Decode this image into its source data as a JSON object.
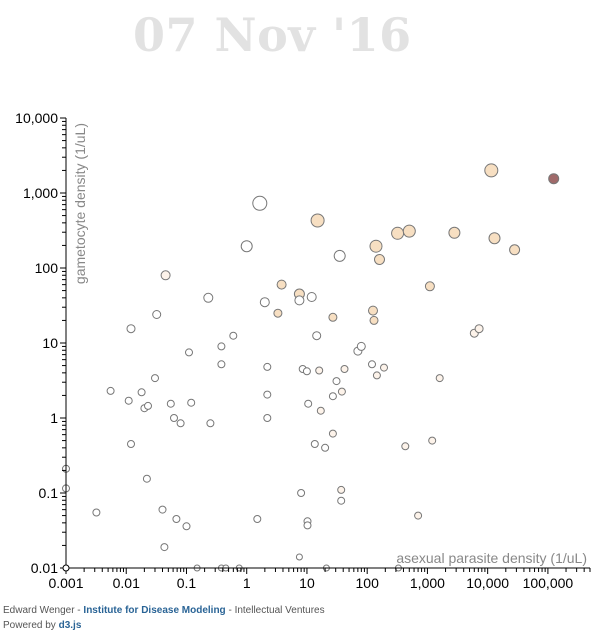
{
  "title": "07 Nov '16",
  "footer": {
    "author": "Edward Wenger",
    "sep1": " - ",
    "institute": "Institute for Disease Modeling",
    "sep2": " - ",
    "company": "Intellectual Ventures",
    "powered_prefix": "Powered by ",
    "library": "d3.js"
  },
  "chart_data": {
    "type": "scatter",
    "title": "07 Nov '16",
    "xlabel": "asexual parasite density (1/uL)",
    "ylabel": "gametocyte density (1/uL)",
    "x_scale": "log",
    "y_scale": "log",
    "xlim": [
      0.001,
      500000
    ],
    "ylim": [
      0.01,
      10000
    ],
    "x_ticks": [
      "0.001",
      "0.01",
      "0.1",
      "1",
      "10",
      "100",
      "1,000",
      "10,000",
      "100,000"
    ],
    "y_ticks": [
      "0.01",
      "0.1",
      "1",
      "10",
      "100",
      "1,000",
      "10,000"
    ],
    "grid": false,
    "colors": {
      "outline": "#777777",
      "highlight_fill": "#a06a6a",
      "warm_fill": "#f7dfc2",
      "light_fill": "#fdf3ea"
    },
    "points": [
      {
        "x": 0.001,
        "y": 0.21,
        "r": 3.5,
        "fill": "#ffffff"
      },
      {
        "x": 0.001,
        "y": 0.115,
        "r": 3.5,
        "fill": "#ffffff"
      },
      {
        "x": 0.0032,
        "y": 0.055,
        "r": 3.5,
        "fill": "#ffffff"
      },
      {
        "x": 0.0055,
        "y": 2.3,
        "r": 3.5,
        "fill": "#ffffff"
      },
      {
        "x": 0.011,
        "y": 1.7,
        "r": 3.5,
        "fill": "#ffffff"
      },
      {
        "x": 0.012,
        "y": 0.45,
        "r": 3.5,
        "fill": "#ffffff"
      },
      {
        "x": 0.012,
        "y": 15.5,
        "r": 4,
        "fill": "#ffffff"
      },
      {
        "x": 0.018,
        "y": 2.2,
        "r": 3.5,
        "fill": "#ffffff"
      },
      {
        "x": 0.02,
        "y": 1.35,
        "r": 3.5,
        "fill": "#ffffff"
      },
      {
        "x": 0.023,
        "y": 1.45,
        "r": 3.5,
        "fill": "#ffffff"
      },
      {
        "x": 0.022,
        "y": 0.155,
        "r": 3.5,
        "fill": "#ffffff"
      },
      {
        "x": 0.03,
        "y": 3.4,
        "r": 3.5,
        "fill": "#ffffff"
      },
      {
        "x": 0.032,
        "y": 24,
        "r": 4,
        "fill": "#ffffff"
      },
      {
        "x": 0.04,
        "y": 0.06,
        "r": 3.5,
        "fill": "#ffffff"
      },
      {
        "x": 0.043,
        "y": 0.019,
        "r": 3.5,
        "fill": "#ffffff"
      },
      {
        "x": 0.045,
        "y": 80,
        "r": 4.5,
        "fill": "#fdf3ea"
      },
      {
        "x": 0.055,
        "y": 1.55,
        "r": 3.5,
        "fill": "#ffffff"
      },
      {
        "x": 0.062,
        "y": 1.0,
        "r": 3.5,
        "fill": "#ffffff"
      },
      {
        "x": 0.068,
        "y": 0.045,
        "r": 3.5,
        "fill": "#ffffff"
      },
      {
        "x": 0.08,
        "y": 0.85,
        "r": 3.5,
        "fill": "#ffffff"
      },
      {
        "x": 0.1,
        "y": 0.036,
        "r": 3.5,
        "fill": "#ffffff"
      },
      {
        "x": 0.11,
        "y": 7.5,
        "r": 3.5,
        "fill": "#ffffff"
      },
      {
        "x": 0.12,
        "y": 1.6,
        "r": 3.5,
        "fill": "#ffffff"
      },
      {
        "x": 0.15,
        "y": 0.01,
        "r": 3,
        "fill": "#ffffff"
      },
      {
        "x": 0.23,
        "y": 40,
        "r": 4.5,
        "fill": "#ffffff"
      },
      {
        "x": 0.25,
        "y": 0.85,
        "r": 3.5,
        "fill": "#ffffff"
      },
      {
        "x": 0.38,
        "y": 9,
        "r": 3.5,
        "fill": "#ffffff"
      },
      {
        "x": 0.38,
        "y": 5.2,
        "r": 3.5,
        "fill": "#ffffff"
      },
      {
        "x": 0.38,
        "y": 0.01,
        "r": 3,
        "fill": "#ffffff"
      },
      {
        "x": 0.45,
        "y": 0.01,
        "r": 3,
        "fill": "#ffffff"
      },
      {
        "x": 0.6,
        "y": 12.5,
        "r": 3.5,
        "fill": "#ffffff"
      },
      {
        "x": 0.75,
        "y": 0.01,
        "r": 3,
        "fill": "#ffffff"
      },
      {
        "x": 1.0,
        "y": 195,
        "r": 5.5,
        "fill": "#ffffff"
      },
      {
        "x": 1.5,
        "y": 0.045,
        "r": 3.5,
        "fill": "#ffffff"
      },
      {
        "x": 1.65,
        "y": 730,
        "r": 7,
        "fill": "#ffffff"
      },
      {
        "x": 2.0,
        "y": 35,
        "r": 4.5,
        "fill": "#ffffff"
      },
      {
        "x": 2.2,
        "y": 4.8,
        "r": 3.5,
        "fill": "#ffffff"
      },
      {
        "x": 2.2,
        "y": 2.05,
        "r": 3.5,
        "fill": "#ffffff"
      },
      {
        "x": 2.2,
        "y": 1.0,
        "r": 3.5,
        "fill": "#ffffff"
      },
      {
        "x": 3.3,
        "y": 25,
        "r": 4,
        "fill": "#f7dfc2"
      },
      {
        "x": 3.8,
        "y": 60,
        "r": 4.5,
        "fill": "#f7dfc2"
      },
      {
        "x": 7.5,
        "y": 45,
        "r": 5,
        "fill": "#f7dfc2"
      },
      {
        "x": 7.5,
        "y": 37,
        "r": 4.5,
        "fill": "#ffffff"
      },
      {
        "x": 7.5,
        "y": 0.014,
        "r": 3,
        "fill": "#ffffff"
      },
      {
        "x": 8.0,
        "y": 0.1,
        "r": 3.5,
        "fill": "#ffffff"
      },
      {
        "x": 8.5,
        "y": 4.5,
        "r": 3.5,
        "fill": "#ffffff"
      },
      {
        "x": 10.0,
        "y": 4.2,
        "r": 3.5,
        "fill": "#ffffff"
      },
      {
        "x": 10.2,
        "y": 0.042,
        "r": 3.5,
        "fill": "#ffffff"
      },
      {
        "x": 10.2,
        "y": 0.037,
        "r": 3.5,
        "fill": "#ffffff"
      },
      {
        "x": 10.5,
        "y": 1.55,
        "r": 3.5,
        "fill": "#ffffff"
      },
      {
        "x": 12.0,
        "y": 41,
        "r": 4.5,
        "fill": "#ffffff"
      },
      {
        "x": 13.5,
        "y": 0.45,
        "r": 3.5,
        "fill": "#ffffff"
      },
      {
        "x": 14.5,
        "y": 12.5,
        "r": 4,
        "fill": "#ffffff"
      },
      {
        "x": 15.0,
        "y": 430,
        "r": 6.5,
        "fill": "#f7dfc2"
      },
      {
        "x": 16.0,
        "y": 4.3,
        "r": 3.5,
        "fill": "#fdf3ea"
      },
      {
        "x": 17.0,
        "y": 1.25,
        "r": 3.5,
        "fill": "#fdf3ea"
      },
      {
        "x": 20.0,
        "y": 0.4,
        "r": 3.5,
        "fill": "#ffffff"
      },
      {
        "x": 21.0,
        "y": 0.01,
        "r": 3,
        "fill": "#ffffff"
      },
      {
        "x": 27.0,
        "y": 22,
        "r": 4,
        "fill": "#f7dfc2"
      },
      {
        "x": 27.0,
        "y": 1.95,
        "r": 3.5,
        "fill": "#ffffff"
      },
      {
        "x": 27.0,
        "y": 0.62,
        "r": 3.5,
        "fill": "#fdf3ea"
      },
      {
        "x": 31.0,
        "y": 3.1,
        "r": 3.5,
        "fill": "#ffffff"
      },
      {
        "x": 35.0,
        "y": 145,
        "r": 5.5,
        "fill": "#ffffff"
      },
      {
        "x": 37.0,
        "y": 0.11,
        "r": 3.5,
        "fill": "#fdf3ea"
      },
      {
        "x": 37.0,
        "y": 0.079,
        "r": 3.5,
        "fill": "#ffffff"
      },
      {
        "x": 38.0,
        "y": 2.25,
        "r": 3.5,
        "fill": "#fdf3ea"
      },
      {
        "x": 42.0,
        "y": 4.5,
        "r": 3.5,
        "fill": "#fdf3ea"
      },
      {
        "x": 70.0,
        "y": 7.8,
        "r": 4,
        "fill": "#ffffff"
      },
      {
        "x": 80.0,
        "y": 9.0,
        "r": 4,
        "fill": "#ffffff"
      },
      {
        "x": 120.0,
        "y": 5.2,
        "r": 3.5,
        "fill": "#ffffff"
      },
      {
        "x": 125.0,
        "y": 27,
        "r": 4.5,
        "fill": "#f7dfc2"
      },
      {
        "x": 130.0,
        "y": 20,
        "r": 4,
        "fill": "#f7dfc2"
      },
      {
        "x": 140.0,
        "y": 195,
        "r": 6,
        "fill": "#f7dfc2"
      },
      {
        "x": 145.0,
        "y": 3.7,
        "r": 3.5,
        "fill": "#fdf3ea"
      },
      {
        "x": 160.0,
        "y": 130,
        "r": 5,
        "fill": "#f7dfc2"
      },
      {
        "x": 190.0,
        "y": 4.7,
        "r": 3.5,
        "fill": "#fdf3ea"
      },
      {
        "x": 320.0,
        "y": 290,
        "r": 6,
        "fill": "#f7dfc2"
      },
      {
        "x": 330.0,
        "y": 0.01,
        "r": 3,
        "fill": "#ffffff"
      },
      {
        "x": 430.0,
        "y": 0.42,
        "r": 3.5,
        "fill": "#fdf3ea"
      },
      {
        "x": 500.0,
        "y": 310,
        "r": 6,
        "fill": "#f7dfc2"
      },
      {
        "x": 700.0,
        "y": 0.05,
        "r": 3.5,
        "fill": "#fdf3ea"
      },
      {
        "x": 1100.0,
        "y": 57,
        "r": 4.5,
        "fill": "#f7dfc2"
      },
      {
        "x": 1200.0,
        "y": 0.5,
        "r": 3.5,
        "fill": "#fdf3ea"
      },
      {
        "x": 1600.0,
        "y": 3.4,
        "r": 3.5,
        "fill": "#fdf3ea"
      },
      {
        "x": 2800.0,
        "y": 295,
        "r": 5.5,
        "fill": "#f7dfc2"
      },
      {
        "x": 6000.0,
        "y": 13.5,
        "r": 4,
        "fill": "#fdf3ea"
      },
      {
        "x": 7200.0,
        "y": 15.5,
        "r": 4,
        "fill": "#fdf3ea"
      },
      {
        "x": 11500.0,
        "y": 2000,
        "r": 6.5,
        "fill": "#f7dfc2"
      },
      {
        "x": 13000.0,
        "y": 250,
        "r": 5.5,
        "fill": "#f7dfc2"
      },
      {
        "x": 28000.0,
        "y": 175,
        "r": 5,
        "fill": "#f7dfc2"
      },
      {
        "x": 125000.0,
        "y": 1550,
        "r": 5,
        "fill": "#a06a6a"
      }
    ]
  }
}
